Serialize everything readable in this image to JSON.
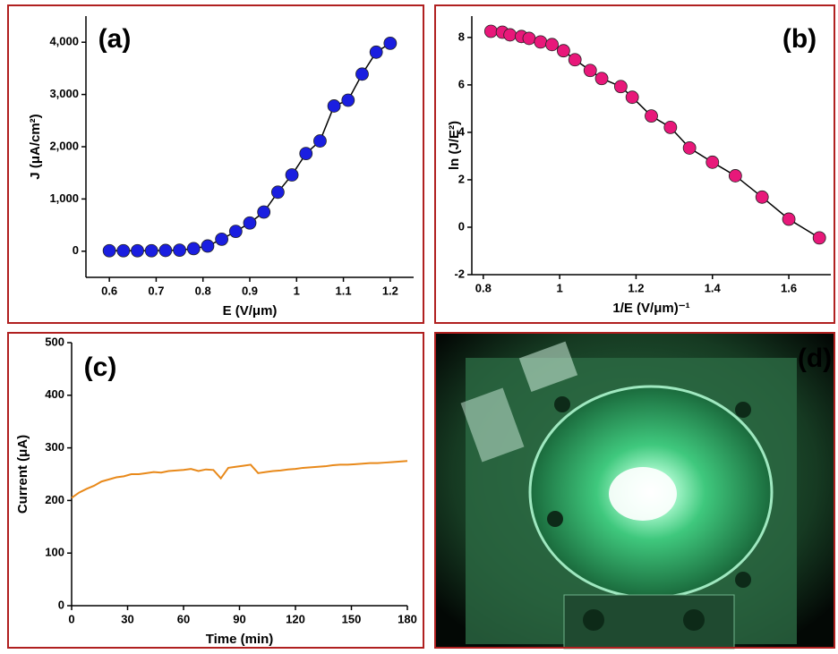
{
  "chart_data": [
    {
      "type": "line",
      "title": "(a)",
      "xlabel": "E (V/μm)",
      "ylabel": "J (μA/cm²)",
      "markers": true,
      "color": "#1a1ee0",
      "x": [
        0.6,
        0.63,
        0.66,
        0.69,
        0.72,
        0.75,
        0.78,
        0.81,
        0.84,
        0.87,
        0.9,
        0.93,
        0.96,
        0.99,
        1.02,
        1.05,
        1.08,
        1.11,
        1.14,
        1.17,
        1.2
      ],
      "values": [
        10,
        10,
        10,
        10,
        15,
        20,
        50,
        100,
        230,
        380,
        540,
        750,
        1130,
        1460,
        1870,
        2110,
        2780,
        2890,
        3390,
        3810,
        3980
      ],
      "xlim": [
        0.55,
        1.25
      ],
      "xticks": [
        0.6,
        0.7,
        0.8,
        0.9,
        1.0,
        1.1,
        1.2
      ],
      "ylim": [
        -500,
        4500
      ],
      "yticks": [
        0,
        {
          "value": 1000,
          "label": "1,000"
        },
        {
          "value": 2000,
          "label": "2,000"
        },
        {
          "value": 3000,
          "label": "3,000"
        },
        {
          "value": 4000,
          "label": "4,000"
        }
      ]
    },
    {
      "type": "line",
      "title": "(b)",
      "xlabel": "1/E (V/μm)⁻¹",
      "ylabel": "ln (J/E²)",
      "markers": true,
      "color": "#e8187a",
      "x": [
        0.82,
        0.85,
        0.87,
        0.9,
        0.92,
        0.95,
        0.98,
        1.01,
        1.04,
        1.08,
        1.11,
        1.16,
        1.19,
        1.24,
        1.29,
        1.34,
        1.4,
        1.46,
        1.53,
        1.6,
        1.68
      ],
      "values": [
        8.26,
        8.22,
        8.11,
        8.04,
        7.96,
        7.81,
        7.7,
        7.44,
        7.06,
        6.61,
        6.27,
        5.93,
        5.48,
        4.69,
        4.21,
        3.34,
        2.74,
        2.17,
        1.27,
        0.34,
        -0.45
      ],
      "xlim": [
        0.77,
        1.71
      ],
      "xticks": [
        0.8,
        1.0,
        1.2,
        1.4,
        1.6
      ],
      "ylim": [
        -2,
        8.9
      ],
      "yticks": [
        -2,
        0,
        2,
        4,
        6,
        8
      ]
    },
    {
      "type": "line",
      "title": "(c)",
      "xlabel": "Time (min)",
      "ylabel": "Current (μA)",
      "markers": false,
      "color": "#e8891a",
      "x": [
        0,
        4,
        8,
        12,
        16,
        20,
        24,
        28,
        32,
        36,
        40,
        44,
        48,
        52,
        56,
        60,
        64,
        68,
        72,
        76,
        80,
        84,
        88,
        92,
        96,
        100,
        104,
        108,
        112,
        116,
        120,
        124,
        128,
        132,
        136,
        140,
        144,
        148,
        152,
        156,
        160,
        164,
        168,
        172,
        176,
        180
      ],
      "values": [
        205,
        215,
        222,
        228,
        236,
        240,
        244,
        246,
        250,
        250,
        252,
        254,
        253,
        256,
        257,
        258,
        260,
        256,
        259,
        258,
        242,
        262,
        264,
        266,
        268,
        252,
        254,
        256,
        257,
        259,
        260,
        262,
        263,
        264,
        265,
        267,
        268,
        268,
        269,
        270,
        271,
        271,
        272,
        273,
        274,
        275
      ],
      "xlim": [
        0,
        180
      ],
      "xticks": [
        0,
        30,
        60,
        90,
        120,
        150,
        180
      ],
      "ylim": [
        0,
        500
      ],
      "yticks": [
        0,
        100,
        200,
        300,
        400,
        500
      ]
    },
    {
      "type": "image",
      "title": "(d)"
    }
  ]
}
